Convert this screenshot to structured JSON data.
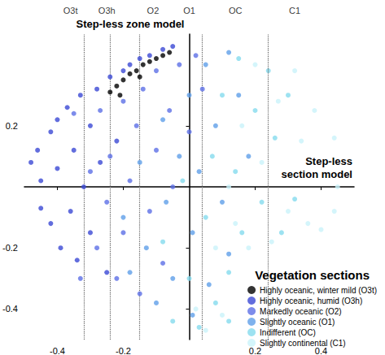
{
  "chart_data": {
    "type": "scatter",
    "x_label": "Step-less\nsection model",
    "y_label": "Step-less zone model",
    "xlim": [
      -0.5,
      0.5
    ],
    "ylim": [
      -0.5,
      0.5
    ],
    "xticks": [
      -0.4,
      -0.2,
      0.2,
      0.4
    ],
    "yticks": [
      -0.4,
      -0.2,
      0.2
    ],
    "grid": false,
    "legend": "lower right",
    "legend_title": "Vegetation sections",
    "section_boundaries": [
      -0.32,
      -0.24,
      -0.15,
      0.04,
      0.24
    ],
    "section_labels": [
      {
        "x": -0.36,
        "text": "O3t"
      },
      {
        "x": -0.25,
        "text": "O3h"
      },
      {
        "x": -0.11,
        "text": "O2"
      },
      {
        "x": 0.0,
        "text": "O1"
      },
      {
        "x": 0.14,
        "text": "OC"
      },
      {
        "x": 0.32,
        "text": "C1"
      }
    ],
    "series": [
      {
        "name": "Highly oceanic, winter mild (O3t)",
        "color": "#000000",
        "points": [
          [
            -0.24,
            0.31
          ],
          [
            -0.22,
            0.33
          ],
          [
            -0.2,
            0.35
          ],
          [
            -0.18,
            0.37
          ],
          [
            -0.16,
            0.38
          ],
          [
            -0.14,
            0.4
          ],
          [
            -0.12,
            0.41
          ],
          [
            -0.1,
            0.42
          ],
          [
            -0.08,
            0.43
          ],
          [
            -0.06,
            0.44
          ],
          [
            -0.21,
            0.3
          ],
          [
            -0.15,
            0.36
          ]
        ]
      },
      {
        "name": "Highly oceanic, humid (O3h)",
        "color": "#3b48d4",
        "points": [
          [
            -0.48,
            0.08
          ],
          [
            -0.46,
            0.12
          ],
          [
            -0.45,
            0.02
          ],
          [
            -0.45,
            -0.07
          ],
          [
            -0.42,
            0.18
          ],
          [
            -0.42,
            -0.12
          ],
          [
            -0.4,
            0.22
          ],
          [
            -0.4,
            0.06
          ],
          [
            -0.39,
            -0.2
          ],
          [
            -0.37,
            0.26
          ],
          [
            -0.36,
            -0.08
          ],
          [
            -0.35,
            0.12
          ],
          [
            -0.34,
            -0.24
          ],
          [
            -0.33,
            0.3
          ],
          [
            -0.32,
            0.0
          ],
          [
            -0.3,
            0.2
          ],
          [
            -0.3,
            -0.15
          ],
          [
            -0.28,
            0.32
          ],
          [
            -0.27,
            0.08
          ],
          [
            -0.25,
            -0.28
          ],
          [
            -0.24,
            0.36
          ],
          [
            -0.22,
            0.15
          ],
          [
            -0.2,
            0.38
          ],
          [
            -0.18,
            0.4
          ],
          [
            -0.15,
            0.42
          ],
          [
            -0.12,
            0.43
          ],
          [
            -0.08,
            0.45
          ],
          [
            -0.05,
            0.46
          ]
        ]
      },
      {
        "name": "Markedly oceanic (O2)",
        "color": "#5d6fe6",
        "points": [
          [
            -0.35,
            0.24
          ],
          [
            -0.33,
            -0.3
          ],
          [
            -0.3,
            0.05
          ],
          [
            -0.28,
            -0.2
          ],
          [
            -0.27,
            0.25
          ],
          [
            -0.25,
            -0.05
          ],
          [
            -0.24,
            0.1
          ],
          [
            -0.22,
            -0.3
          ],
          [
            -0.2,
            0.28
          ],
          [
            -0.2,
            -0.15
          ],
          [
            -0.18,
            0.02
          ],
          [
            -0.16,
            0.2
          ],
          [
            -0.15,
            -0.35
          ],
          [
            -0.14,
            0.32
          ],
          [
            -0.12,
            -0.08
          ],
          [
            -0.1,
            0.12
          ],
          [
            -0.1,
            0.38
          ],
          [
            -0.08,
            -0.25
          ],
          [
            -0.06,
            0.25
          ],
          [
            -0.05,
            0.0
          ],
          [
            -0.03,
            0.4
          ],
          [
            0.0,
            0.18
          ],
          [
            0.02,
            0.43
          ],
          [
            0.04,
            0.32
          ]
        ]
      },
      {
        "name": "Slightly oceanic (O1)",
        "color": "#5f9fe8",
        "points": [
          [
            -0.2,
            -0.1
          ],
          [
            -0.18,
            -0.28
          ],
          [
            -0.15,
            0.08
          ],
          [
            -0.13,
            -0.2
          ],
          [
            -0.1,
            -0.38
          ],
          [
            -0.08,
            0.22
          ],
          [
            -0.07,
            -0.05
          ],
          [
            -0.05,
            -0.3
          ],
          [
            -0.03,
            0.1
          ],
          [
            0.01,
            -0.42
          ],
          [
            0.0,
            0.3
          ],
          [
            0.01,
            -0.15
          ],
          [
            0.03,
            0.05
          ],
          [
            0.05,
            0.4
          ],
          [
            0.06,
            -0.32
          ],
          [
            0.08,
            0.2
          ],
          [
            0.1,
            -0.05
          ],
          [
            0.12,
            0.44
          ],
          [
            0.12,
            -0.22
          ],
          [
            0.15,
            0.3
          ],
          [
            0.18,
            0.1
          ]
        ]
      },
      {
        "name": "Indifferent (OC)",
        "color": "#84dbee",
        "points": [
          [
            -0.08,
            -0.18
          ],
          [
            -0.05,
            -0.44
          ],
          [
            -0.02,
            0.02
          ],
          [
            0.0,
            -0.3
          ],
          [
            0.03,
            -0.46
          ],
          [
            0.05,
            -0.1
          ],
          [
            0.07,
            0.1
          ],
          [
            0.08,
            -0.38
          ],
          [
            0.1,
            0.3
          ],
          [
            0.12,
            -0.28
          ],
          [
            0.14,
            0.05
          ],
          [
            0.15,
            0.42
          ],
          [
            0.16,
            -0.15
          ],
          [
            0.12,
            -0.44
          ],
          [
            0.2,
            0.25
          ],
          [
            0.22,
            -0.05
          ],
          [
            0.24,
            0.38
          ],
          [
            0.26,
            0.16
          ],
          [
            0.28,
            -0.15
          ],
          [
            0.3,
            0.3
          ],
          [
            0.32,
            -0.04
          ]
        ]
      },
      {
        "name": "Slightly continental (C1)",
        "color": "#c9f3fa",
        "points": [
          [
            0.02,
            -0.4
          ],
          [
            0.05,
            -0.47
          ],
          [
            0.08,
            -0.2
          ],
          [
            0.1,
            -0.42
          ],
          [
            0.12,
            0.0
          ],
          [
            0.14,
            -0.12
          ],
          [
            0.16,
            0.2
          ],
          [
            0.18,
            -0.2
          ],
          [
            0.2,
            0.4
          ],
          [
            0.22,
            0.08
          ],
          [
            0.25,
            -0.18
          ],
          [
            0.27,
            0.28
          ],
          [
            0.3,
            -0.08
          ],
          [
            0.32,
            0.38
          ],
          [
            0.34,
            0.15
          ],
          [
            0.36,
            -0.12
          ],
          [
            0.38,
            0.25
          ],
          [
            0.4,
            -0.14
          ],
          [
            0.44,
            -0.08
          ],
          [
            0.44,
            0.16
          ],
          [
            0.45,
            0.0
          ]
        ]
      }
    ]
  }
}
